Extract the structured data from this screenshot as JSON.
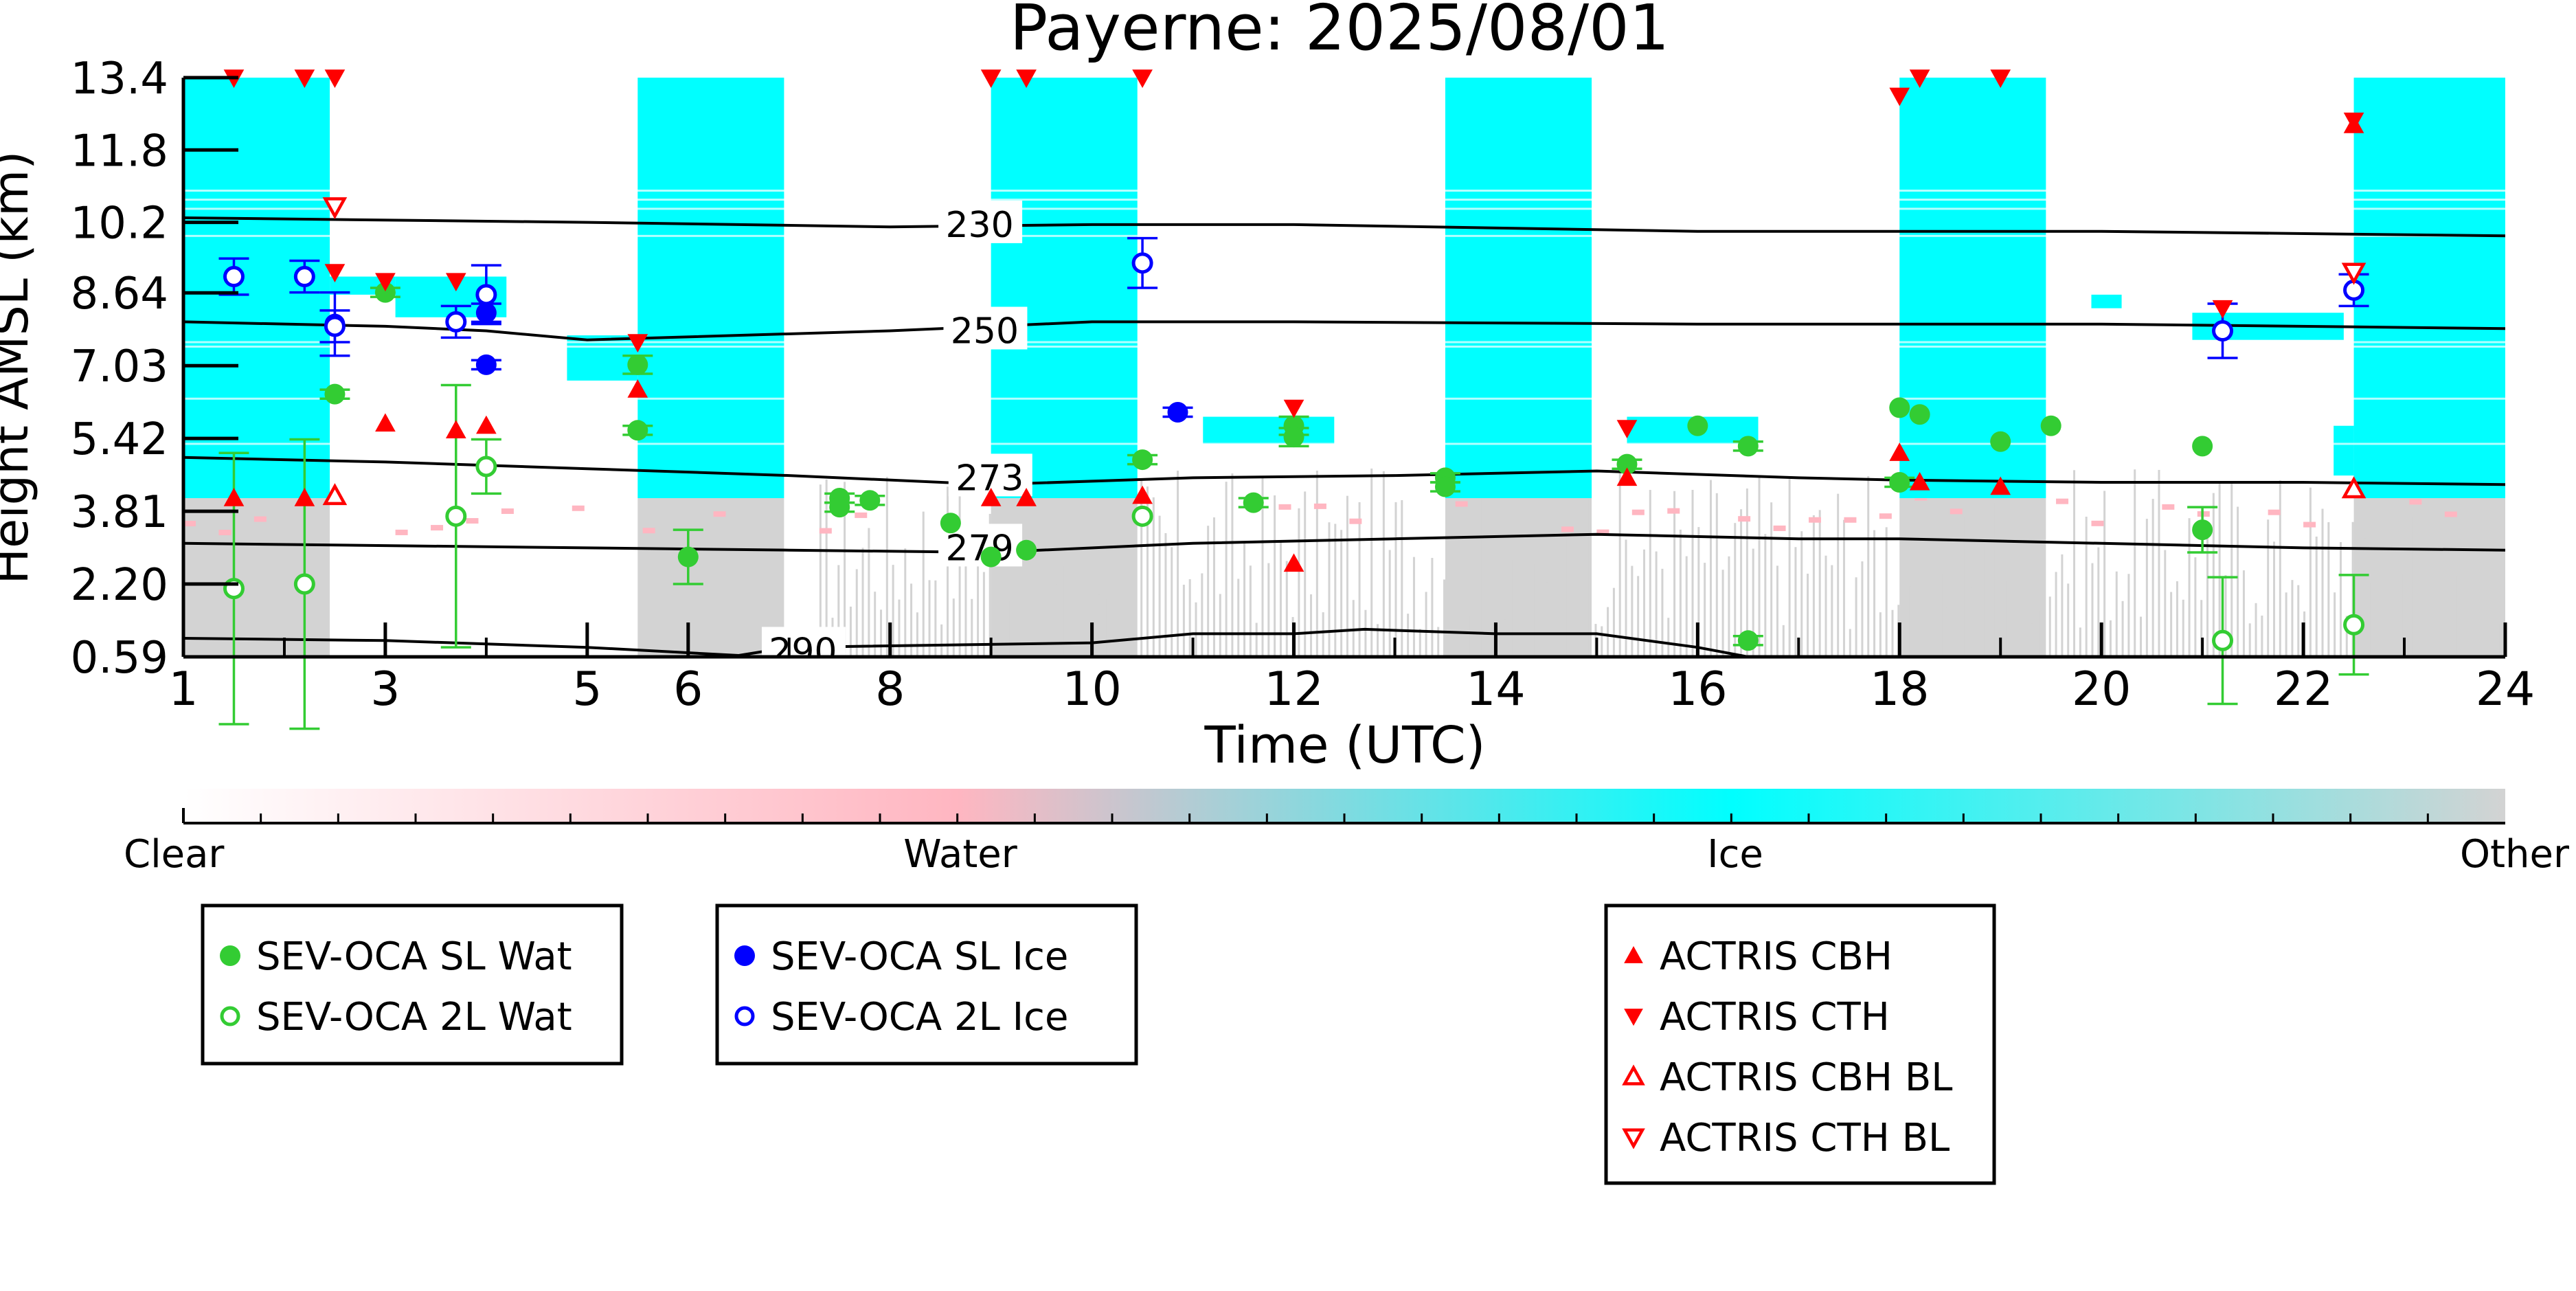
{
  "chart_data": {
    "type": "scatter",
    "title": "Payerne: 2025/08/01",
    "xlabel": "Time (UTC)",
    "ylabel": "Height AMSL (km)",
    "xlim": [
      1,
      24
    ],
    "ylim": [
      0.59,
      13.4
    ],
    "x_ticks": [
      1,
      3,
      5,
      6,
      8,
      10,
      12,
      14,
      16,
      18,
      20,
      22,
      24
    ],
    "y_ticks": [
      "0.59",
      "2.20",
      "3.81",
      "5.42",
      "7.03",
      "8.64",
      "10.2",
      "11.8",
      "13.4"
    ],
    "colors": {
      "ice": "#00ffff",
      "other": "#d3d3d3",
      "water": "#ffb6c1",
      "sl_wat": "#33cc33",
      "sl_ice": "#0000ff",
      "actris": "#ff0000"
    },
    "ice_blocks": [
      [
        1.0,
        2.45
      ],
      [
        5.5,
        6.95
      ],
      [
        9.0,
        10.45
      ],
      [
        13.5,
        14.95
      ],
      [
        18.0,
        19.45
      ],
      [
        22.5,
        24.0
      ]
    ],
    "ice_block_bottom_km": 4.1,
    "isotherms": [
      {
        "label": "230",
        "x": [
          1,
          5,
          8,
          10,
          12,
          16,
          20,
          24
        ],
        "y": [
          10.3,
          10.2,
          10.1,
          10.15,
          10.15,
          10.0,
          10.0,
          9.9
        ]
      },
      {
        "label": "250",
        "x": [
          1,
          3,
          4,
          5,
          8,
          10,
          12,
          16,
          20,
          24
        ],
        "y": [
          8.0,
          7.9,
          7.8,
          7.6,
          7.8,
          8.0,
          8.0,
          7.95,
          7.95,
          7.85
        ]
      },
      {
        "label": "273",
        "x": [
          1,
          3,
          5,
          7,
          9,
          11,
          13,
          15,
          17,
          18,
          20,
          22,
          24
        ],
        "y": [
          5.0,
          4.9,
          4.75,
          4.6,
          4.4,
          4.55,
          4.6,
          4.7,
          4.55,
          4.5,
          4.45,
          4.45,
          4.4
        ]
      },
      {
        "label": "279",
        "x": [
          1,
          3,
          5,
          7,
          9,
          11,
          13,
          15,
          17,
          18,
          20,
          22,
          24
        ],
        "y": [
          3.1,
          3.05,
          3.0,
          2.95,
          2.9,
          3.1,
          3.2,
          3.3,
          3.2,
          3.2,
          3.1,
          3.0,
          2.95
        ]
      },
      {
        "label": "290",
        "x": [
          1,
          3,
          5,
          6.5,
          7,
          10,
          11,
          12,
          12.7,
          14,
          15,
          16,
          16.5
        ],
        "y": [
          1.0,
          0.95,
          0.8,
          0.62,
          0.8,
          0.9,
          1.1,
          1.1,
          1.2,
          1.1,
          1.1,
          0.8,
          0.59
        ]
      }
    ],
    "series": [
      {
        "name": "SEV-OCA SL Wat",
        "marker": "circle-filled",
        "color": "#33cc33",
        "points": [
          [
            2.5,
            6.4,
            0.1
          ],
          [
            3.0,
            8.65,
            0.1
          ],
          [
            5.5,
            7.05,
            0.2
          ],
          [
            5.5,
            5.6,
            0.1
          ],
          [
            6.0,
            2.8,
            0.6
          ],
          [
            7.5,
            4.1,
            0.1
          ],
          [
            7.5,
            3.9,
            0.1
          ],
          [
            7.8,
            4.05,
            0.1
          ],
          [
            8.6,
            3.55,
            0
          ],
          [
            9.0,
            2.8,
            0
          ],
          [
            9.35,
            2.95,
            0
          ],
          [
            10.5,
            4.95,
            0.1
          ],
          [
            11.6,
            4.0,
            0.1
          ],
          [
            12.0,
            5.7,
            0.2
          ],
          [
            12.0,
            5.45,
            0.2
          ],
          [
            13.5,
            4.55,
            0.1
          ],
          [
            13.5,
            4.35,
            0.1
          ],
          [
            15.3,
            4.85,
            0.1
          ],
          [
            16.0,
            5.7,
            0
          ],
          [
            16.5,
            5.25,
            0.1
          ],
          [
            16.5,
            0.95,
            0.1
          ],
          [
            18.0,
            6.1,
            0
          ],
          [
            18.2,
            5.95,
            0
          ],
          [
            18.0,
            4.45,
            0.1
          ],
          [
            19.0,
            5.35,
            0
          ],
          [
            19.5,
            5.7,
            0
          ],
          [
            21.0,
            5.25,
            0
          ],
          [
            21.0,
            3.4,
            0.5
          ]
        ]
      },
      {
        "name": "SEV-OCA 2L Wat",
        "marker": "circle-open",
        "color": "#33cc33",
        "points": [
          [
            1.5,
            2.1,
            3.0
          ],
          [
            2.2,
            2.2,
            3.2
          ],
          [
            3.7,
            3.7,
            2.9
          ],
          [
            4.0,
            4.8,
            0.6
          ],
          [
            10.5,
            3.7,
            0
          ],
          [
            21.2,
            0.95,
            1.4
          ],
          [
            22.5,
            1.3,
            1.1
          ]
        ]
      },
      {
        "name": "SEV-OCA SL Ice",
        "marker": "circle-filled",
        "color": "#0000ff",
        "points": [
          [
            2.5,
            7.95,
            0.7
          ],
          [
            4.0,
            8.2,
            0.2
          ],
          [
            4.0,
            7.05,
            0.1
          ],
          [
            10.85,
            6.0,
            0.1
          ]
        ]
      },
      {
        "name": "SEV-OCA 2L Ice",
        "marker": "circle-open",
        "color": "#0000ff",
        "points": [
          [
            1.5,
            9.0,
            0.4
          ],
          [
            2.2,
            9.0,
            0.35
          ],
          [
            2.5,
            7.9,
            0.35
          ],
          [
            3.7,
            8.0,
            0.35
          ],
          [
            4.0,
            8.6,
            0.65
          ],
          [
            10.5,
            9.3,
            0.55
          ],
          [
            21.2,
            7.8,
            0.6
          ],
          [
            22.5,
            8.7,
            0.35
          ]
        ]
      },
      {
        "name": "ACTRIS CBH",
        "marker": "triangle-up-filled",
        "color": "#ff0000",
        "points": [
          [
            1.5,
            4.1
          ],
          [
            2.2,
            4.1
          ],
          [
            3.0,
            5.75
          ],
          [
            3.7,
            5.6
          ],
          [
            4.0,
            5.7
          ],
          [
            5.5,
            6.5
          ],
          [
            9.0,
            4.1
          ],
          [
            9.35,
            4.1
          ],
          [
            10.5,
            4.15
          ],
          [
            12.0,
            2.65
          ],
          [
            15.3,
            4.55
          ],
          [
            18.0,
            5.1
          ],
          [
            18.2,
            4.45
          ],
          [
            19.0,
            4.35
          ],
          [
            22.5,
            12.35
          ]
        ]
      },
      {
        "name": "ACTRIS CTH",
        "marker": "triangle-down-filled",
        "color": "#ff0000",
        "points": [
          [
            1.5,
            13.4
          ],
          [
            2.2,
            13.4
          ],
          [
            2.5,
            13.4
          ],
          [
            2.5,
            9.1
          ],
          [
            3.0,
            8.9
          ],
          [
            3.7,
            8.9
          ],
          [
            5.5,
            7.55
          ],
          [
            9.0,
            13.4
          ],
          [
            9.35,
            13.4
          ],
          [
            10.5,
            13.4
          ],
          [
            12.0,
            6.1
          ],
          [
            15.3,
            5.65
          ],
          [
            18.0,
            13.0
          ],
          [
            18.2,
            13.4
          ],
          [
            19.0,
            13.4
          ],
          [
            21.2,
            8.3
          ],
          [
            22.5,
            12.45
          ]
        ]
      },
      {
        "name": "ACTRIS CBH BL",
        "marker": "triangle-up-open",
        "color": "#ff0000",
        "points": [
          [
            2.5,
            4.15
          ],
          [
            22.5,
            4.3
          ]
        ]
      },
      {
        "name": "ACTRIS CTH BL",
        "marker": "triangle-down-open",
        "color": "#ff0000",
        "points": [
          [
            2.5,
            10.55
          ],
          [
            22.5,
            9.1
          ]
        ]
      }
    ],
    "colorbar": {
      "stops": [
        "#ffffff",
        "#ffb6c1",
        "#00ffff",
        "#d3d3d3"
      ],
      "labels": [
        "Clear",
        "Water",
        "Ice",
        "Other"
      ]
    },
    "legend_groups": [
      [
        "SEV-OCA SL Wat",
        "SEV-OCA 2L Wat"
      ],
      [
        "SEV-OCA SL Ice",
        "SEV-OCA 2L Ice"
      ],
      [
        "ACTRIS CBH",
        "ACTRIS CTH",
        "ACTRIS CBH BL",
        "ACTRIS CTH BL"
      ]
    ]
  }
}
